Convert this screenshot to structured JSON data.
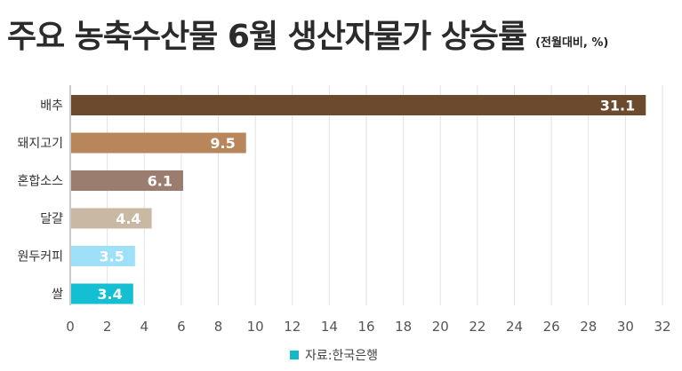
{
  "title": "주요 농축수산물 6월 생산자물가 상승률",
  "unit_note": "(전월대비, %)",
  "source": "자료:한국은행",
  "source_color": "#16b8c8",
  "chart_data": {
    "type": "bar",
    "orientation": "horizontal",
    "categories": [
      "배추",
      "돼지고기",
      "혼합소스",
      "달걀",
      "원두커피",
      "쌀"
    ],
    "values": [
      31.1,
      9.5,
      6.1,
      4.4,
      3.5,
      3.4
    ],
    "value_labels": [
      "31.1",
      "9.5",
      "6.1",
      "4.4",
      "3.5",
      "3.4"
    ],
    "colors": [
      "#6b4a2e",
      "#b9855a",
      "#9b7d70",
      "#c9b8a3",
      "#9ee0f8",
      "#14bfd3"
    ],
    "xlim": [
      0,
      32
    ],
    "x_ticks": [
      0,
      2,
      4,
      6,
      8,
      10,
      12,
      14,
      16,
      18,
      20,
      22,
      24,
      26,
      28,
      30,
      32
    ],
    "grid": true
  }
}
